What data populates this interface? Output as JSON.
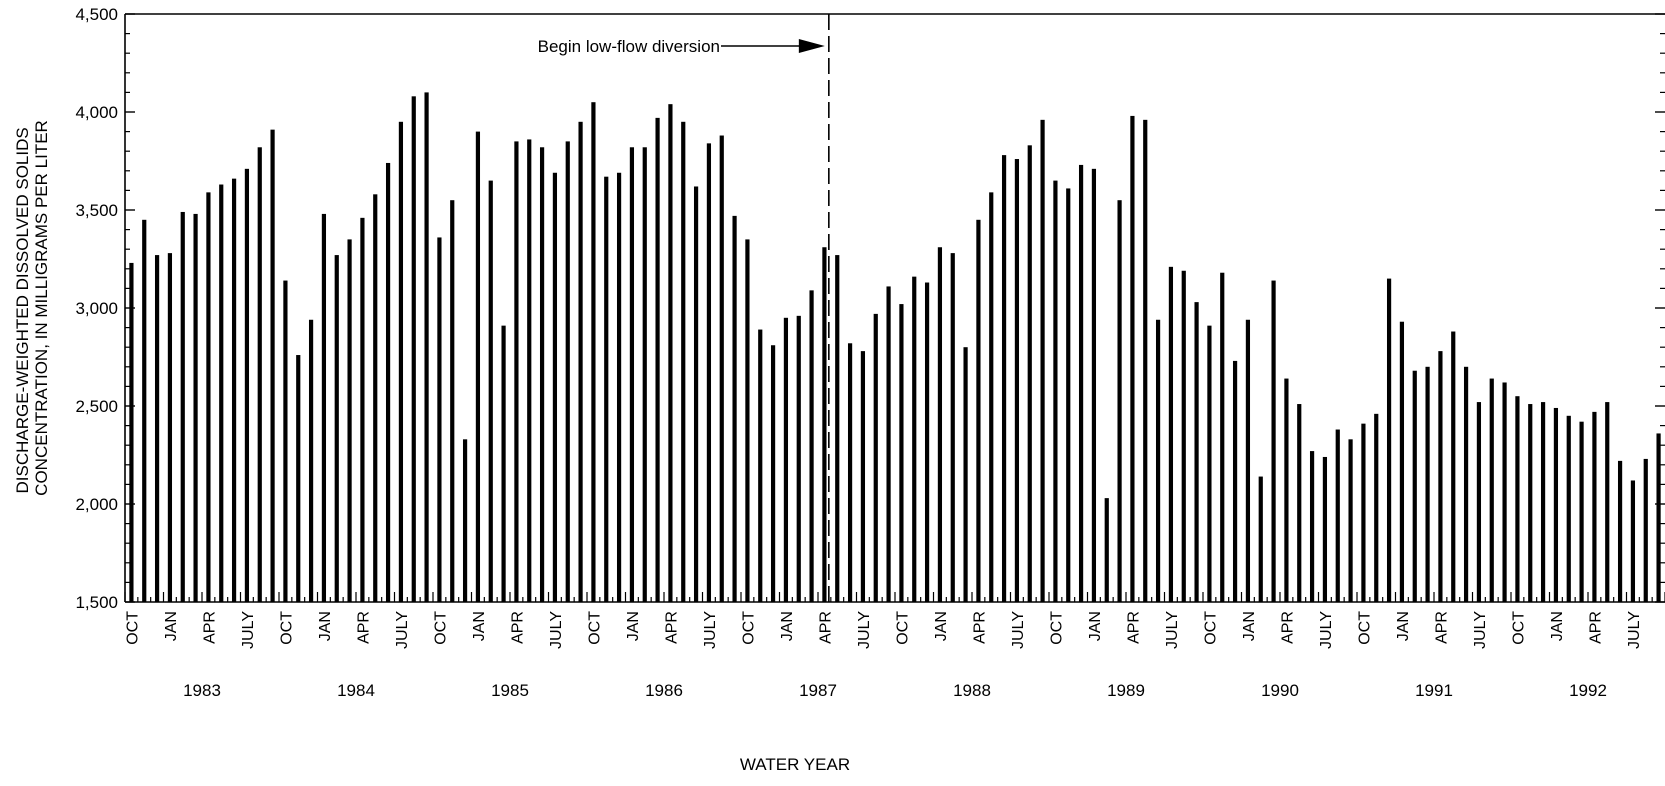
{
  "chart_data": {
    "type": "bar",
    "xlabel": "WATER YEAR",
    "ylabel_lines": [
      "DISCHARGE-WEIGHTED DISSOLVED SOLIDS",
      "CONCENTRATION, IN MILLIGRAMS PER LITER"
    ],
    "ylim": [
      1500,
      4500
    ],
    "y_ticks": [
      1500,
      2000,
      2500,
      3000,
      3500,
      4000,
      4500
    ],
    "y_tick_labels": [
      "1,500",
      "2,000",
      "2,500",
      "3,000",
      "3,500",
      "4,000",
      "4,500"
    ],
    "month_ticks": [
      "OCT",
      "JAN",
      "APR",
      "JULY",
      "OCT",
      "JAN",
      "APR",
      "JULY",
      "OCT",
      "JAN",
      "APR",
      "JULY",
      "OCT",
      "JAN",
      "APR",
      "JULY",
      "OCT",
      "JAN",
      "APR",
      "JULY",
      "OCT",
      "JAN",
      "APR",
      "JULY",
      "OCT",
      "JAN",
      "APR",
      "JULY",
      "OCT",
      "JAN",
      "APR",
      "JULY",
      "OCT",
      "JAN",
      "APR",
      "JULY",
      "OCT",
      "JAN",
      "APR",
      "JULY"
    ],
    "years": [
      "1983",
      "1984",
      "1985",
      "1986",
      "1987",
      "1988",
      "1989",
      "1990",
      "1991",
      "1992"
    ],
    "annotation": "Begin low-flow diversion",
    "values": [
      3230,
      3450,
      3270,
      3280,
      3490,
      3480,
      3590,
      3630,
      3660,
      3710,
      3820,
      3910,
      3140,
      2760,
      2940,
      3480,
      3270,
      3350,
      3460,
      3580,
      3740,
      3950,
      4080,
      4100,
      3360,
      3550,
      2330,
      3900,
      3650,
      2910,
      3850,
      3860,
      3820,
      3690,
      3850,
      3950,
      4050,
      3670,
      3690,
      3820,
      3820,
      3970,
      4040,
      3950,
      3620,
      3840,
      3880,
      3470,
      3350,
      2890,
      2810,
      2950,
      2960,
      3090,
      3310,
      3270,
      2820,
      2780,
      2970,
      3110,
      3020,
      3160,
      3130,
      3310,
      3280,
      2800,
      3450,
      3590,
      3780,
      3760,
      3830,
      3960,
      3650,
      3610,
      3730,
      3710,
      2030,
      3550,
      3980,
      3960,
      2940,
      3210,
      3190,
      3030,
      2910,
      3180,
      2730,
      2940,
      2140,
      3140,
      2640,
      2510,
      2270,
      2240,
      2380,
      2330,
      2410,
      2460,
      3150,
      2930,
      2680,
      2700,
      2780,
      2880,
      2700,
      2520,
      2640,
      2620,
      2550,
      2510,
      2520,
      2490,
      2450,
      2420,
      2470,
      2520,
      2220,
      2120,
      2230,
      2360
    ]
  }
}
